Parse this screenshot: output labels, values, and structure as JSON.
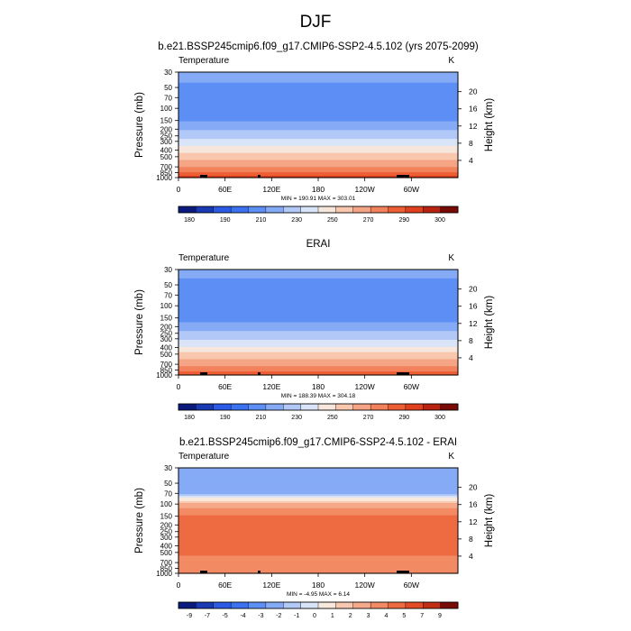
{
  "figure": {
    "title": "DJF"
  },
  "palettes": {
    "temperature": [
      "#0b1b7d",
      "#1a3ab4",
      "#2a5ae6",
      "#3a72f2",
      "#5d8ff5",
      "#86abf6",
      "#b2c9f7",
      "#d9e4f8",
      "#f6e6db",
      "#f8c7ae",
      "#f5a585",
      "#f2825c",
      "#ee5e35",
      "#e0401e",
      "#b82410",
      "#7a0a06"
    ],
    "difference": [
      "#0b1b7d",
      "#1a3ab4",
      "#2a5ae6",
      "#3a72f2",
      "#5d8ff5",
      "#86abf6",
      "#b2c9f7",
      "#d9e4f8",
      "#f9e8dc",
      "#f8c9b0",
      "#f5a989",
      "#f28a64",
      "#ee6b42",
      "#e34b25",
      "#c12e12",
      "#7a0a06"
    ]
  },
  "chart_data": [
    {
      "type": "heatmap",
      "title": "b.e21.BSSP245cmip6.f09_g17.CMIP6-SSP2-4.5.102 (yrs 2075-2099)",
      "left_label": "Temperature",
      "units": "K",
      "ylabel": "Pressure (mb)",
      "ylabel_right": "Height (km)",
      "pressure_ticks": [
        "30",
        "50",
        "70",
        "100",
        "150",
        "200",
        "250",
        "300",
        "400",
        "500",
        "700",
        "850",
        "1000"
      ],
      "height_ticks": [
        "20",
        "16",
        "12",
        "8",
        "4"
      ],
      "x_ticks": [
        "0",
        "60E",
        "120E",
        "180",
        "120W",
        "60W"
      ],
      "stats": "MIN = 190.91   MAX = 303.01",
      "colorbar_labels": [
        "180",
        "190",
        "210",
        "230",
        "250",
        "270",
        "290",
        "300"
      ],
      "palette": "temperature",
      "levels": [
        175,
        180,
        185,
        190,
        200,
        210,
        220,
        230,
        240,
        250,
        260,
        270,
        280,
        290,
        295,
        300,
        305
      ],
      "profile": [
        [
          30,
          214
        ],
        [
          50,
          208
        ],
        [
          70,
          205
        ],
        [
          100,
          204
        ],
        [
          150,
          209
        ],
        [
          200,
          219
        ],
        [
          250,
          226
        ],
        [
          300,
          232
        ],
        [
          400,
          246
        ],
        [
          500,
          256
        ],
        [
          700,
          270
        ],
        [
          850,
          282
        ],
        [
          1000,
          292
        ]
      ]
    },
    {
      "type": "heatmap",
      "title": "ERAI",
      "left_label": "Temperature",
      "units": "K",
      "ylabel": "Pressure (mb)",
      "ylabel_right": "Height (km)",
      "pressure_ticks": [
        "30",
        "50",
        "70",
        "100",
        "150",
        "200",
        "250",
        "300",
        "400",
        "500",
        "700",
        "850",
        "1000"
      ],
      "height_ticks": [
        "20",
        "16",
        "12",
        "8",
        "4"
      ],
      "x_ticks": [
        "0",
        "60E",
        "120E",
        "180",
        "120W",
        "60W"
      ],
      "stats": "MIN = 188.39   MAX = 304.18",
      "colorbar_labels": [
        "180",
        "190",
        "210",
        "230",
        "250",
        "270",
        "290",
        "300"
      ],
      "palette": "temperature",
      "levels": [
        175,
        180,
        185,
        190,
        200,
        210,
        220,
        230,
        240,
        250,
        260,
        270,
        280,
        290,
        295,
        300,
        305
      ],
      "profile": [
        [
          30,
          213
        ],
        [
          50,
          208
        ],
        [
          70,
          203
        ],
        [
          100,
          200
        ],
        [
          150,
          205
        ],
        [
          200,
          214
        ],
        [
          250,
          222
        ],
        [
          300,
          229
        ],
        [
          400,
          242
        ],
        [
          500,
          252
        ],
        [
          700,
          266
        ],
        [
          850,
          278
        ],
        [
          1000,
          288
        ]
      ]
    },
    {
      "type": "heatmap",
      "title": "b.e21.BSSP245cmip6.f09_g17.CMIP6-SSP2-4.5.102 - ERAI",
      "left_label": "Temperature",
      "units": "K",
      "ylabel": "Pressure (mb)",
      "ylabel_right": "Height (km)",
      "pressure_ticks": [
        "30",
        "50",
        "70",
        "100",
        "150",
        "200",
        "250",
        "300",
        "400",
        "500",
        "700",
        "850",
        "1000"
      ],
      "height_ticks": [
        "20",
        "16",
        "12",
        "8",
        "4"
      ],
      "x_ticks": [
        "0",
        "60E",
        "120E",
        "180",
        "120W",
        "60W"
      ],
      "stats": "MIN = -4.95   MAX = 6.14",
      "colorbar_labels": [
        "-9",
        "-7",
        "-5",
        "-4",
        "-3",
        "-2",
        "-1",
        "0",
        "1",
        "2",
        "3",
        "4",
        "5",
        "7",
        "9"
      ],
      "palette": "difference",
      "levels": [
        -10,
        -9,
        -7,
        -5,
        -4,
        -3,
        -2,
        -1,
        0,
        1,
        2,
        3,
        4,
        5,
        7,
        9,
        10
      ],
      "profile": [
        [
          30,
          -2.5
        ],
        [
          50,
          -2.6
        ],
        [
          70,
          -2.2
        ],
        [
          100,
          2.5
        ],
        [
          150,
          4.2
        ],
        [
          200,
          4.5
        ],
        [
          250,
          4.8
        ],
        [
          300,
          5.0
        ],
        [
          400,
          4.6
        ],
        [
          500,
          4.2
        ],
        [
          700,
          3.6
        ],
        [
          850,
          3.2
        ],
        [
          1000,
          3.0
        ]
      ]
    }
  ]
}
